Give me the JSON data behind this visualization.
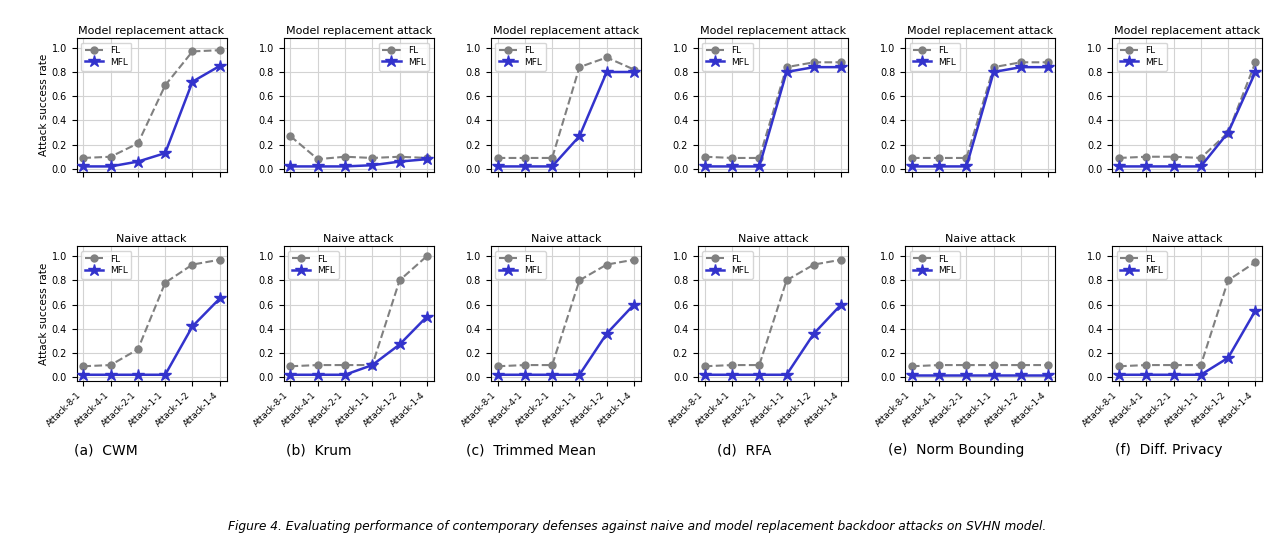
{
  "x_labels": [
    "Attack-8-1",
    "Attack-4-1",
    "Attack-2-1",
    "Attack-1-1",
    "Attack-1-2",
    "Attack-1-4"
  ],
  "titles_top": [
    "Model replacement attack",
    "Model replacement attack",
    "Model replacement attack",
    "Model replacement attack",
    "Model replacement attack",
    "Model replacement attack"
  ],
  "titles_bottom": [
    "Naive attack",
    "Naive attack",
    "Naive attack",
    "Naive attack",
    "Naive attack",
    "Naive attack"
  ],
  "subplot_labels": [
    "(a)  CWM",
    "(b)  Krum",
    "(c)  Trimmed Mean",
    "(d)  RFA",
    "(e)  Norm Bounding",
    "(f)  Diff. Privacy"
  ],
  "fl_color": "#808080",
  "mfl_color": "#3333cc",
  "fl_markersize": 5,
  "mfl_markersize": 9,
  "ylabel": "Attack success rate",
  "yticks": [
    0.0,
    0.2,
    0.4,
    0.6,
    0.8,
    1.0
  ],
  "figure_caption": "Figure 4. Evaluating performance of contemporary defenses against naive and model replacement backdoor attacks on SVHN model.",
  "model_replacement_FL": [
    [
      0.09,
      0.1,
      0.21,
      0.69,
      0.97,
      0.98
    ],
    [
      0.27,
      0.08,
      0.1,
      0.09,
      0.1,
      0.09
    ],
    [
      0.09,
      0.09,
      0.09,
      0.84,
      0.92,
      0.82
    ],
    [
      0.1,
      0.09,
      0.09,
      0.84,
      0.88,
      0.88
    ],
    [
      0.09,
      0.09,
      0.09,
      0.84,
      0.88,
      0.88
    ],
    [
      0.09,
      0.1,
      0.1,
      0.09,
      0.3,
      0.88
    ]
  ],
  "model_replacement_MFL": [
    [
      0.02,
      0.02,
      0.06,
      0.13,
      0.72,
      0.85
    ],
    [
      0.02,
      0.02,
      0.02,
      0.03,
      0.06,
      0.08
    ],
    [
      0.02,
      0.02,
      0.02,
      0.27,
      0.8,
      0.8
    ],
    [
      0.02,
      0.02,
      0.02,
      0.8,
      0.84,
      0.84
    ],
    [
      0.02,
      0.02,
      0.02,
      0.8,
      0.84,
      0.84
    ],
    [
      0.02,
      0.02,
      0.02,
      0.02,
      0.3,
      0.8
    ]
  ],
  "naive_FL": [
    [
      0.09,
      0.1,
      0.23,
      0.78,
      0.93,
      0.97
    ],
    [
      0.09,
      0.1,
      0.1,
      0.1,
      0.8,
      1.0
    ],
    [
      0.09,
      0.1,
      0.1,
      0.8,
      0.93,
      0.97
    ],
    [
      0.09,
      0.1,
      0.1,
      0.8,
      0.93,
      0.97
    ],
    [
      0.09,
      0.1,
      0.1,
      0.1,
      0.1,
      0.1
    ],
    [
      0.09,
      0.1,
      0.1,
      0.1,
      0.8,
      0.95
    ]
  ],
  "naive_MFL": [
    [
      0.02,
      0.02,
      0.02,
      0.02,
      0.42,
      0.65
    ],
    [
      0.02,
      0.02,
      0.02,
      0.1,
      0.27,
      0.5
    ],
    [
      0.02,
      0.02,
      0.02,
      0.02,
      0.36,
      0.6
    ],
    [
      0.02,
      0.02,
      0.02,
      0.02,
      0.36,
      0.6
    ],
    [
      0.02,
      0.02,
      0.02,
      0.02,
      0.02,
      0.02
    ],
    [
      0.02,
      0.02,
      0.02,
      0.02,
      0.16,
      0.55
    ]
  ]
}
